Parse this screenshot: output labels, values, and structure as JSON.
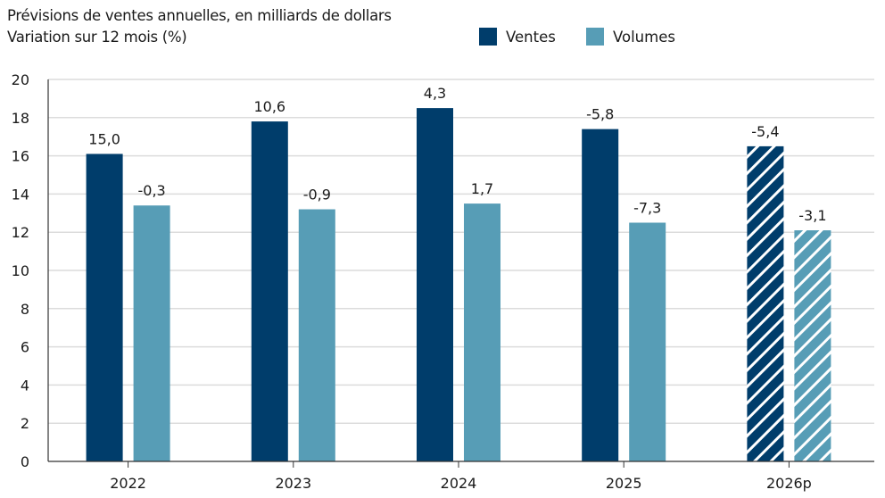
{
  "header": {
    "title": "Prévisions de ventes annuelles, en milliards de dollars",
    "subtitle": "Variation sur 12 mois (%)"
  },
  "chart_data": {
    "type": "bar",
    "categories": [
      "2022",
      "2023",
      "2024",
      "2025",
      "2026p"
    ],
    "series": [
      {
        "name": "Ventes",
        "color": "#003d6b",
        "values": [
          16.1,
          17.8,
          18.5,
          17.4,
          16.5
        ],
        "labels": [
          "15,0",
          "10,6",
          "4,3",
          "-5,8",
          "-5,4"
        ]
      },
      {
        "name": "Volumes",
        "color": "#579db6",
        "values": [
          13.4,
          13.2,
          13.5,
          12.5,
          12.1
        ],
        "labels": [
          "-0,3",
          "-0,9",
          "1,7",
          "-7,3",
          "-3,1"
        ]
      }
    ],
    "hatched_categories": [
      "2026p"
    ],
    "ylim": [
      0,
      20
    ],
    "yticks": [
      "0",
      "2",
      "4",
      "6",
      "8",
      "10",
      "12",
      "14",
      "16",
      "18",
      "20"
    ],
    "grid": true,
    "legend": "top-right"
  }
}
